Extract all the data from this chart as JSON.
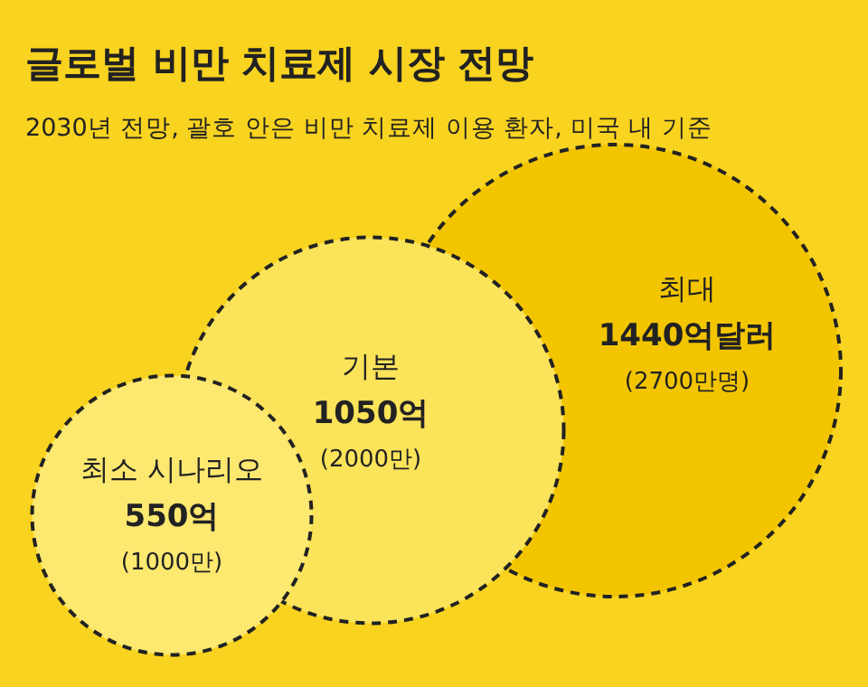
{
  "chart_data": {
    "type": "other",
    "title": "글로벌 비만 치료제 시장 전망",
    "subtitle": "2030년 전망, 괄호 안은 비만 치료제 이용 환자, 미국 내 기준",
    "categories": [
      "최소 시나리오",
      "기본",
      "최대"
    ],
    "series": [
      {
        "values": [
          550,
          1050,
          1440
        ],
        "value_labels": [
          "550억",
          "1050억",
          "1440억달러"
        ],
        "colors": [
          "#fde870",
          "#fbe35a",
          "#f2c500"
        ]
      }
    ],
    "annotations": [
      "(1000만)",
      "(2000만)",
      "(2700만명)"
    ]
  }
}
